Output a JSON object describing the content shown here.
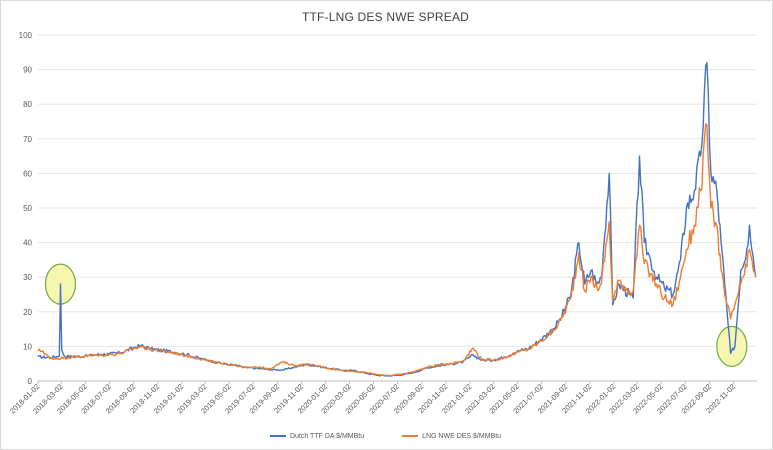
{
  "chart_data": {
    "type": "line",
    "title": "TTF-LNG DES NWE SPREAD",
    "xlabel": "",
    "ylabel": "",
    "ylim": [
      0,
      100
    ],
    "yticks": [
      "0",
      "10",
      "20",
      "30",
      "40",
      "50",
      "60",
      "70",
      "80",
      "90",
      "100"
    ],
    "xticks": [
      "2018-01-02",
      "2018-03-02",
      "2018-05-02",
      "2018-07-02",
      "2018-09-02",
      "2018-11-02",
      "2019-01-02",
      "2019-03-02",
      "2019-05-02",
      "2019-07-02",
      "2019-09-02",
      "2019-11-02",
      "2020-01-02",
      "2020-03-02",
      "2020-05-02",
      "2020-07-02",
      "2020-09-02",
      "2020-11-02",
      "2021-01-02",
      "2021-03-02",
      "2021-05-02",
      "2021-07-02",
      "2021-09-02",
      "2021-11-02",
      "2022-01-02",
      "2022-03-02",
      "2022-05-02",
      "2022-07-02",
      "2022-09-02",
      "2022-11-02"
    ],
    "grid": true,
    "legend_position": "bottom",
    "series": [
      {
        "name": "Dutch TTF DA $/MMBtu",
        "color": "#4472C4",
        "points": [
          [
            "2018-01-02",
            7.0
          ],
          [
            "2018-02-01",
            6.8
          ],
          [
            "2018-02-25",
            7.2
          ],
          [
            "2018-02-28",
            28.0
          ],
          [
            "2018-03-03",
            9.0
          ],
          [
            "2018-03-10",
            7.2
          ],
          [
            "2018-04-01",
            7.0
          ],
          [
            "2018-05-01",
            7.2
          ],
          [
            "2018-06-01",
            7.6
          ],
          [
            "2018-07-01",
            7.8
          ],
          [
            "2018-08-01",
            8.2
          ],
          [
            "2018-09-01",
            9.6
          ],
          [
            "2018-09-20",
            10.2
          ],
          [
            "2018-10-15",
            9.3
          ],
          [
            "2018-11-15",
            8.8
          ],
          [
            "2018-12-15",
            8.3
          ],
          [
            "2019-01-15",
            7.6
          ],
          [
            "2019-02-15",
            6.6
          ],
          [
            "2019-03-15",
            5.8
          ],
          [
            "2019-04-15",
            5.0
          ],
          [
            "2019-05-15",
            4.6
          ],
          [
            "2019-06-15",
            3.9
          ],
          [
            "2019-07-15",
            3.6
          ],
          [
            "2019-08-15",
            3.3
          ],
          [
            "2019-09-15",
            3.2
          ],
          [
            "2019-10-15",
            4.0
          ],
          [
            "2019-11-15",
            4.8
          ],
          [
            "2019-12-15",
            4.2
          ],
          [
            "2020-01-15",
            3.6
          ],
          [
            "2020-02-15",
            3.1
          ],
          [
            "2020-03-15",
            3.0
          ],
          [
            "2020-04-15",
            2.2
          ],
          [
            "2020-05-15",
            1.6
          ],
          [
            "2020-06-15",
            1.5
          ],
          [
            "2020-07-15",
            1.8
          ],
          [
            "2020-08-15",
            2.5
          ],
          [
            "2020-09-15",
            3.8
          ],
          [
            "2020-10-15",
            4.4
          ],
          [
            "2020-11-15",
            4.9
          ],
          [
            "2020-12-15",
            5.5
          ],
          [
            "2021-01-10",
            7.5
          ],
          [
            "2021-02-01",
            6.0
          ],
          [
            "2021-03-01",
            6.0
          ],
          [
            "2021-04-01",
            7.0
          ],
          [
            "2021-05-01",
            8.5
          ],
          [
            "2021-06-01",
            9.5
          ],
          [
            "2021-07-01",
            12.0
          ],
          [
            "2021-08-01",
            15.0
          ],
          [
            "2021-08-20",
            18.0
          ],
          [
            "2021-09-15",
            25.0
          ],
          [
            "2021-10-05",
            40.0
          ],
          [
            "2021-10-20",
            28.0
          ],
          [
            "2021-11-05",
            32.0
          ],
          [
            "2021-11-20",
            28.0
          ],
          [
            "2021-12-01",
            30.0
          ],
          [
            "2021-12-21",
            60.0
          ],
          [
            "2021-12-30",
            22.0
          ],
          [
            "2022-01-15",
            28.0
          ],
          [
            "2022-02-10",
            25.0
          ],
          [
            "2022-02-20",
            24.0
          ],
          [
            "2022-03-08",
            65.0
          ],
          [
            "2022-03-20",
            40.0
          ],
          [
            "2022-04-05",
            35.0
          ],
          [
            "2022-04-20",
            30.0
          ],
          [
            "2022-05-10",
            27.0
          ],
          [
            "2022-06-01",
            25.0
          ],
          [
            "2022-06-20",
            35.0
          ],
          [
            "2022-07-05",
            50.0
          ],
          [
            "2022-07-25",
            55.0
          ],
          [
            "2022-08-10",
            65.0
          ],
          [
            "2022-08-26",
            92.0
          ],
          [
            "2022-09-05",
            60.0
          ],
          [
            "2022-09-20",
            55.0
          ],
          [
            "2022-10-01",
            40.0
          ],
          [
            "2022-10-10",
            28.0
          ],
          [
            "2022-10-25",
            8.0
          ],
          [
            "2022-11-05",
            10.0
          ],
          [
            "2022-11-20",
            32.0
          ],
          [
            "2022-12-05",
            38.0
          ],
          [
            "2022-12-12",
            45.0
          ],
          [
            "2022-12-28",
            30.0
          ]
        ]
      },
      {
        "name": "LNG NWE DES $/MMBtu",
        "color": "#ED7D31",
        "points": [
          [
            "2018-01-02",
            8.8
          ],
          [
            "2018-01-15",
            8.6
          ],
          [
            "2018-02-01",
            6.5
          ],
          [
            "2018-03-01",
            6.6
          ],
          [
            "2018-04-01",
            7.0
          ],
          [
            "2018-05-01",
            7.1
          ],
          [
            "2018-06-01",
            7.5
          ],
          [
            "2018-07-01",
            7.6
          ],
          [
            "2018-08-01",
            8.0
          ],
          [
            "2018-09-01",
            9.3
          ],
          [
            "2018-09-20",
            10.0
          ],
          [
            "2018-10-15",
            9.1
          ],
          [
            "2018-11-15",
            8.6
          ],
          [
            "2018-12-15",
            8.1
          ],
          [
            "2019-01-15",
            7.3
          ],
          [
            "2019-02-15",
            6.5
          ],
          [
            "2019-03-15",
            5.7
          ],
          [
            "2019-04-15",
            5.0
          ],
          [
            "2019-05-15",
            4.6
          ],
          [
            "2019-06-15",
            3.8
          ],
          [
            "2019-07-15",
            4.0
          ],
          [
            "2019-08-15",
            3.6
          ],
          [
            "2019-09-15",
            5.5
          ],
          [
            "2019-10-15",
            4.5
          ],
          [
            "2019-11-15",
            4.8
          ],
          [
            "2019-12-15",
            4.3
          ],
          [
            "2020-01-15",
            3.5
          ],
          [
            "2020-02-15",
            3.0
          ],
          [
            "2020-03-15",
            2.8
          ],
          [
            "2020-04-15",
            2.4
          ],
          [
            "2020-05-15",
            1.8
          ],
          [
            "2020-06-15",
            1.6
          ],
          [
            "2020-07-15",
            2.0
          ],
          [
            "2020-08-15",
            2.8
          ],
          [
            "2020-09-15",
            4.0
          ],
          [
            "2020-10-15",
            4.7
          ],
          [
            "2020-11-15",
            5.1
          ],
          [
            "2020-12-15",
            5.8
          ],
          [
            "2021-01-10",
            9.5
          ],
          [
            "2021-02-01",
            6.2
          ],
          [
            "2021-03-01",
            6.0
          ],
          [
            "2021-04-01",
            6.8
          ],
          [
            "2021-05-01",
            8.2
          ],
          [
            "2021-06-01",
            9.2
          ],
          [
            "2021-07-01",
            11.5
          ],
          [
            "2021-08-01",
            14.5
          ],
          [
            "2021-08-20",
            17.5
          ],
          [
            "2021-09-15",
            24.0
          ],
          [
            "2021-10-05",
            37.0
          ],
          [
            "2021-10-20",
            26.0
          ],
          [
            "2021-11-05",
            30.0
          ],
          [
            "2021-11-20",
            27.0
          ],
          [
            "2021-12-01",
            28.0
          ],
          [
            "2021-12-21",
            46.0
          ],
          [
            "2021-12-30",
            23.0
          ],
          [
            "2022-01-15",
            29.0
          ],
          [
            "2022-02-10",
            26.0
          ],
          [
            "2022-02-20",
            26.0
          ],
          [
            "2022-03-08",
            45.0
          ],
          [
            "2022-03-20",
            34.0
          ],
          [
            "2022-04-05",
            31.0
          ],
          [
            "2022-04-20",
            28.0
          ],
          [
            "2022-05-10",
            24.0
          ],
          [
            "2022-06-01",
            22.0
          ],
          [
            "2022-06-20",
            30.0
          ],
          [
            "2022-07-05",
            38.0
          ],
          [
            "2022-07-25",
            45.0
          ],
          [
            "2022-08-10",
            55.0
          ],
          [
            "2022-08-26",
            74.0
          ],
          [
            "2022-09-05",
            50.0
          ],
          [
            "2022-09-20",
            45.0
          ],
          [
            "2022-10-01",
            32.0
          ],
          [
            "2022-10-10",
            25.0
          ],
          [
            "2022-10-25",
            18.0
          ],
          [
            "2022-11-05",
            22.0
          ],
          [
            "2022-11-20",
            28.0
          ],
          [
            "2022-12-05",
            33.0
          ],
          [
            "2022-12-12",
            38.0
          ],
          [
            "2022-12-28",
            30.0
          ]
        ]
      }
    ],
    "annotations": [
      {
        "shape": "circle",
        "fill": "#F4F4A3",
        "stroke": "#70AD47",
        "at": [
          "2018-02-28",
          28
        ]
      },
      {
        "shape": "circle",
        "fill": "#F4F4A3",
        "stroke": "#70AD47",
        "at": [
          "2022-10-28",
          10
        ]
      }
    ]
  }
}
